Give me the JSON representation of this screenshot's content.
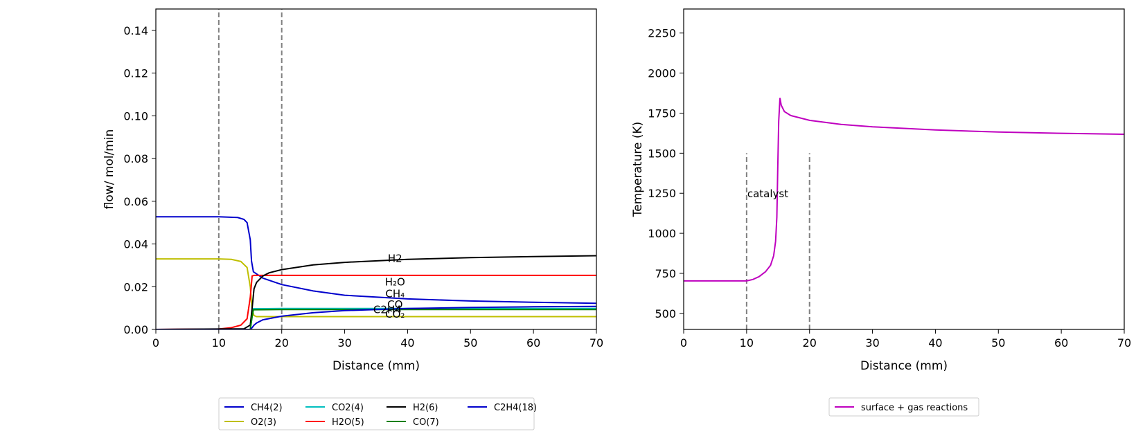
{
  "chart_data": [
    {
      "type": "line",
      "xlabel": "Distance (mm)",
      "ylabel": "flow/ mol/min",
      "xlim": [
        0,
        70
      ],
      "ylim": [
        0,
        0.15
      ],
      "xticks": [
        "0",
        "10",
        "20",
        "30",
        "40",
        "50",
        "60",
        "70"
      ],
      "yticks": [
        "0.00",
        "0.02",
        "0.04",
        "0.06",
        "0.08",
        "0.10",
        "0.12",
        "0.14"
      ],
      "grid": false,
      "vlines": [
        10,
        20
      ],
      "legend_position": "below",
      "series": [
        {
          "name": "CH4(2)",
          "color": "#0000cc",
          "x": [
            0,
            10,
            13,
            14,
            14.5,
            15,
            15.2,
            15.5,
            17,
            20,
            25,
            30,
            40,
            50,
            60,
            70
          ],
          "y": [
            0.0527,
            0.0527,
            0.0524,
            0.0515,
            0.05,
            0.042,
            0.032,
            0.027,
            0.024,
            0.021,
            0.018,
            0.016,
            0.0143,
            0.0133,
            0.0127,
            0.0122
          ]
        },
        {
          "name": "O2(3)",
          "color": "#bfbf00",
          "x": [
            0,
            10,
            12,
            13.5,
            14.5,
            15,
            15.3,
            15.6,
            16,
            70
          ],
          "y": [
            0.033,
            0.033,
            0.0328,
            0.0318,
            0.029,
            0.02,
            0.009,
            0.0065,
            0.006,
            0.006
          ]
        },
        {
          "name": "CO2(4)",
          "color": "#00bfbf",
          "x": [
            0,
            15,
            15.3,
            15.5,
            20,
            70
          ],
          "y": [
            0,
            0,
            0.006,
            0.0097,
            0.0098,
            0.0098
          ]
        },
        {
          "name": "H2O(5)",
          "color": "#ff0000",
          "x": [
            0,
            10,
            12,
            13.5,
            14.5,
            15,
            15.3,
            15.6,
            70
          ],
          "y": [
            0,
            0.0002,
            0.0008,
            0.002,
            0.005,
            0.015,
            0.025,
            0.0253,
            0.0253
          ]
        },
        {
          "name": "H2(6)",
          "color": "#000000",
          "x": [
            0,
            14,
            15,
            15.3,
            15.6,
            16,
            17,
            18,
            20,
            25,
            30,
            40,
            50,
            60,
            70
          ],
          "y": [
            0,
            0.0003,
            0.002,
            0.01,
            0.019,
            0.022,
            0.025,
            0.0265,
            0.028,
            0.0302,
            0.0314,
            0.0328,
            0.0336,
            0.0341,
            0.0345
          ]
        },
        {
          "name": "CO(7)",
          "color": "#008000",
          "x": [
            0,
            15,
            15.3,
            15.5,
            20,
            70
          ],
          "y": [
            0,
            0,
            0.006,
            0.0092,
            0.0093,
            0.0093
          ]
        },
        {
          "name": "C2H4(18)",
          "color": "#0000cc",
          "x": [
            0,
            15,
            15.3,
            15.6,
            16,
            17,
            20,
            25,
            30,
            40,
            50,
            60,
            70
          ],
          "y": [
            0,
            0,
            0.0008,
            0.002,
            0.003,
            0.0045,
            0.0062,
            0.0078,
            0.0088,
            0.0098,
            0.0103,
            0.0106,
            0.0108
          ]
        }
      ],
      "annotations": [
        {
          "text": "H2",
          "x": 38,
          "y": 0.0335
        },
        {
          "text": "H₂O",
          "x": 38,
          "y": 0.0225
        },
        {
          "text": "CH₄",
          "x": 38,
          "y": 0.017
        },
        {
          "text": "CO",
          "x": 38,
          "y": 0.012
        },
        {
          "text": "C2H4",
          "x": 36.8,
          "y": 0.0095
        },
        {
          "text": "CO₂",
          "x": 38,
          "y": 0.0075
        }
      ]
    },
    {
      "type": "line",
      "xlabel": "Distance (mm)",
      "ylabel": "Temperature (K)",
      "xlim": [
        0,
        70
      ],
      "ylim": [
        400,
        2400
      ],
      "xticks": [
        "0",
        "10",
        "20",
        "30",
        "40",
        "50",
        "60",
        "70"
      ],
      "yticks": [
        "500",
        "750",
        "1000",
        "1250",
        "1500",
        "1750",
        "2000",
        "2250"
      ],
      "grid": false,
      "vlines": [
        10,
        20
      ],
      "vline_range": [
        400,
        1500
      ],
      "legend_position": "below",
      "series": [
        {
          "name": "surface + gas reactions",
          "color": "#bf00bf",
          "x": [
            0,
            10,
            11,
            12,
            13,
            13.8,
            14.3,
            14.6,
            14.8,
            14.95,
            15.1,
            15.3,
            15.5,
            16,
            17,
            20,
            25,
            30,
            40,
            50,
            60,
            70
          ],
          "y": [
            703,
            703,
            712,
            730,
            760,
            800,
            860,
            950,
            1100,
            1400,
            1700,
            1845,
            1800,
            1760,
            1735,
            1705,
            1680,
            1665,
            1645,
            1632,
            1624,
            1618
          ]
        }
      ],
      "annotations": [
        {
          "text": "catalyst",
          "x": 10,
          "y": 1250
        }
      ]
    }
  ]
}
